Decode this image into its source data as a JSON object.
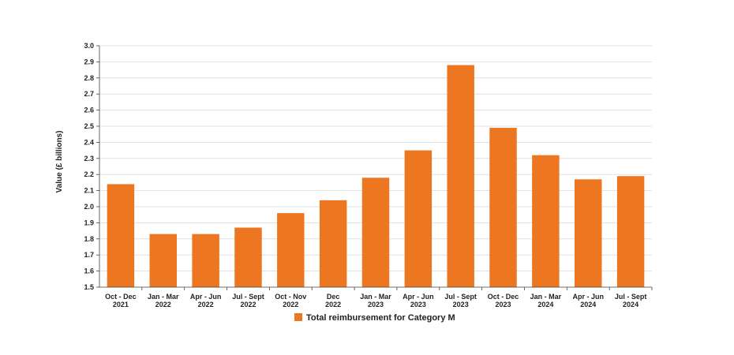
{
  "chart_data": {
    "type": "bar",
    "title": "",
    "xlabel": "",
    "ylabel": "Value (£ billions)",
    "ylim": [
      1.5,
      3.0
    ],
    "yticks": [
      "1.5",
      "1.6",
      "1.7",
      "1.8",
      "1.9",
      "2.0",
      "2.1",
      "2.2",
      "2.3",
      "2.4",
      "2.5",
      "2.6",
      "2.7",
      "2.8",
      "2.9",
      "3.0"
    ],
    "grid": true,
    "legend_position": "bottom",
    "categories": [
      [
        "Oct - Dec",
        "2021"
      ],
      [
        "Jan - Mar",
        "2022"
      ],
      [
        "Apr - Jun",
        "2022"
      ],
      [
        "Jul - Sept",
        "2022"
      ],
      [
        "Oct - Nov",
        "2022"
      ],
      [
        "Dec",
        "2022"
      ],
      [
        "Jan - Mar",
        "2023"
      ],
      [
        "Apr - Jun",
        "2023"
      ],
      [
        "Jul - Sept",
        "2023"
      ],
      [
        "Oct - Dec",
        "2023"
      ],
      [
        "Jan - Mar",
        "2024"
      ],
      [
        "Apr - Jun",
        "2024"
      ],
      [
        "Jul - Sept",
        "2024"
      ]
    ],
    "series": [
      {
        "name": "Total reimbursement for Category M",
        "color": "#ED7620",
        "values": [
          2.14,
          1.83,
          1.83,
          1.87,
          1.96,
          2.04,
          2.18,
          2.35,
          2.88,
          2.49,
          2.32,
          2.17,
          2.19
        ]
      }
    ]
  }
}
